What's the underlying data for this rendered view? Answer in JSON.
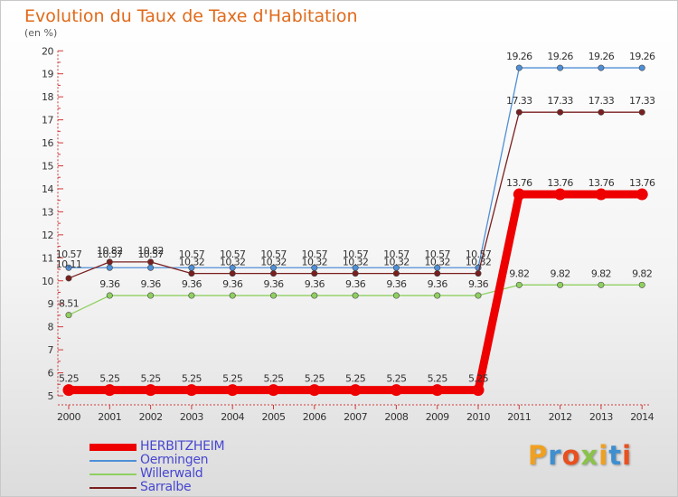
{
  "chart_data": {
    "type": "line",
    "title": "Evolution du Taux de Taxe d'Habitation",
    "subtitle": "(en %)",
    "xlabel": "",
    "ylabel": "",
    "ylim": [
      5,
      20
    ],
    "yticks": [
      5,
      6,
      7,
      8,
      9,
      10,
      11,
      12,
      13,
      14,
      15,
      16,
      17,
      18,
      19,
      20
    ],
    "x": [
      "2000",
      "2001",
      "2002",
      "2003",
      "2004",
      "2005",
      "2006",
      "2007",
      "2008",
      "2009",
      "2010",
      "2011",
      "2012",
      "2013",
      "2014"
    ],
    "series": [
      {
        "name": "HERBITZHEIM",
        "color": "#ee0000",
        "values": [
          5.25,
          5.25,
          5.25,
          5.25,
          5.25,
          5.25,
          5.25,
          5.25,
          5.25,
          5.25,
          5.25,
          13.76,
          13.76,
          13.76,
          13.76
        ],
        "labels": [
          "5.25",
          "5.25",
          "5.25",
          "5.25",
          "5.25",
          "5.25",
          "5.25",
          "5.25",
          "5.25",
          "5.25",
          "5.25",
          "13.76",
          "13.76",
          "13.76",
          "13.76"
        ]
      },
      {
        "name": "Oermingen",
        "color": "#4f8fd6",
        "values": [
          10.57,
          10.57,
          10.57,
          10.57,
          10.57,
          10.57,
          10.57,
          10.57,
          10.57,
          10.57,
          10.57,
          19.26,
          19.26,
          19.26,
          19.26
        ],
        "labels": [
          "10.57",
          "10.57",
          "10.57",
          "10.57",
          "10.57",
          "10.57",
          "10.57",
          "10.57",
          "10.57",
          "10.57",
          "10.57",
          "19.26",
          "19.26",
          "19.26",
          "19.26"
        ]
      },
      {
        "name": "Willerwald",
        "color": "#8fd060",
        "values": [
          8.51,
          9.36,
          9.36,
          9.36,
          9.36,
          9.36,
          9.36,
          9.36,
          9.36,
          9.36,
          9.36,
          9.82,
          9.82,
          9.82,
          9.82
        ],
        "labels": [
          "8.51",
          "9.36",
          "9.36",
          "9.36",
          "9.36",
          "9.36",
          "9.36",
          "9.36",
          "9.36",
          "9.36",
          "9.36",
          "9.82",
          "9.82",
          "9.82",
          "9.82"
        ]
      },
      {
        "name": "Sarralbe",
        "color": "#7a1f1f",
        "values": [
          10.11,
          10.82,
          10.82,
          10.32,
          10.32,
          10.32,
          10.32,
          10.32,
          10.32,
          10.32,
          10.32,
          17.33,
          17.33,
          17.33,
          17.33
        ],
        "labels": [
          "10.11",
          "10.82",
          "10.82",
          "10.32",
          "10.32",
          "10.32",
          "10.32",
          "10.32",
          "10.32",
          "10.32",
          "10.32",
          "17.33",
          "17.33",
          "17.33",
          "17.33"
        ]
      }
    ],
    "legend": "bottom-left"
  },
  "brand": {
    "text": "Proxiti",
    "colors": [
      "#f0a020",
      "#3f8fd0",
      "#e85020",
      "#8ac24a",
      "#f0a020",
      "#3f8fd0",
      "#e85020"
    ]
  }
}
